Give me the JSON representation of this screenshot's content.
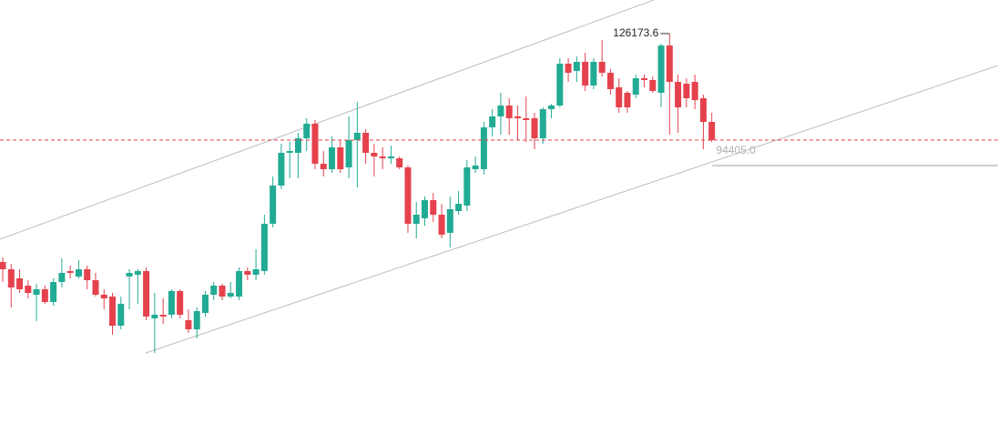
{
  "chart_data": {
    "type": "candlestick",
    "ylim": [
      19150,
      135400
    ],
    "up_color": "#22ab94",
    "down_color": "#e5424d",
    "last_price_line": true,
    "open": [
      63400,
      61400,
      58900,
      56900,
      54400,
      55900,
      52400,
      57900,
      60900,
      59400,
      61400,
      58400,
      54400,
      53900,
      45900,
      59400,
      59900,
      60900,
      47900,
      48900,
      48900,
      55400,
      47400,
      44900,
      49400,
      54400,
      56900,
      53900,
      53900,
      60900,
      59900,
      60900,
      73900,
      84400,
      93400,
      93400,
      97400,
      101400,
      90400,
      88900,
      94900,
      89400,
      96900,
      98900,
      93400,
      92400,
      91900,
      91900,
      89400,
      73900,
      75400,
      80400,
      76400,
      71400,
      77400,
      78900,
      88900,
      88900,
      100400,
      103400,
      106400,
      103400,
      102900,
      102900,
      97400,
      105400,
      106400,
      117900,
      115900,
      118400,
      111900,
      118400,
      115400,
      111400,
      109900,
      109400,
      113900,
      113400,
      109900,
      122900,
      112900,
      112400,
      112900,
      108400,
      101900
    ],
    "high": [
      64650,
      62900,
      61400,
      58400,
      57400,
      56900,
      58900,
      64400,
      62400,
      63900,
      62400,
      60400,
      55900,
      54900,
      53900,
      61400,
      61400,
      61900,
      54900,
      53400,
      55900,
      55900,
      50400,
      50900,
      55400,
      57900,
      57400,
      57900,
      61900,
      61900,
      66900,
      76400,
      86900,
      95900,
      96400,
      98900,
      102900,
      102400,
      93900,
      97900,
      96900,
      103400,
      107400,
      99900,
      95900,
      94900,
      95400,
      92400,
      89900,
      79900,
      81400,
      82400,
      79400,
      81400,
      82900,
      91400,
      92400,
      101900,
      105400,
      109900,
      108400,
      106400,
      108900,
      104400,
      105900,
      106900,
      119400,
      119400,
      119900,
      120900,
      119400,
      124400,
      116400,
      113900,
      110400,
      114900,
      114900,
      114400,
      123400,
      126173.6,
      114900,
      113900,
      114900,
      109400,
      104400
    ],
    "low": [
      57900,
      50900,
      54900,
      53400,
      47150,
      51900,
      51400,
      56400,
      58900,
      58900,
      55900,
      53900,
      50400,
      43400,
      44900,
      50400,
      51900,
      47400,
      38400,
      46400,
      47900,
      47900,
      43900,
      42400,
      48400,
      52900,
      52900,
      53400,
      52900,
      58400,
      58400,
      59900,
      72900,
      83400,
      86400,
      86400,
      93900,
      88900,
      86900,
      87900,
      87900,
      86400,
      83900,
      90400,
      86900,
      88900,
      90400,
      88900,
      71400,
      69900,
      73400,
      74400,
      69900,
      67400,
      76400,
      77400,
      87900,
      87400,
      97900,
      98400,
      98400,
      96900,
      96400,
      94400,
      95900,
      102900,
      105900,
      112900,
      112900,
      110400,
      110900,
      114400,
      109400,
      104400,
      104400,
      108400,
      111400,
      109900,
      105900,
      98400,
      98900,
      105900,
      105400,
      94405,
      96400
    ],
    "close": [
      61400,
      56400,
      55900,
      54900,
      55900,
      52400,
      57900,
      60400,
      60400,
      61400,
      58400,
      54400,
      53400,
      45900,
      51900,
      60400,
      60900,
      48400,
      48900,
      48400,
      55400,
      48900,
      44900,
      49900,
      54400,
      56900,
      53900,
      54900,
      60900,
      59900,
      61400,
      73900,
      84400,
      93400,
      93900,
      97400,
      101400,
      90400,
      88900,
      94900,
      88900,
      96900,
      98900,
      93400,
      92400,
      91900,
      92400,
      89400,
      73900,
      76400,
      80400,
      76400,
      70900,
      77900,
      79400,
      89400,
      89900,
      100400,
      103400,
      106400,
      102900,
      102900,
      102400,
      97400,
      105400,
      106400,
      117900,
      115400,
      118400,
      111900,
      118400,
      115400,
      110900,
      105900,
      105900,
      113900,
      113400,
      110400,
      122900,
      112900,
      105900,
      108400,
      107900,
      101900,
      96900
    ],
    "high_label": {
      "value": 126173.6,
      "label": "126173.6"
    },
    "low_label": {
      "value": 94405,
      "label": "94405.0"
    }
  }
}
